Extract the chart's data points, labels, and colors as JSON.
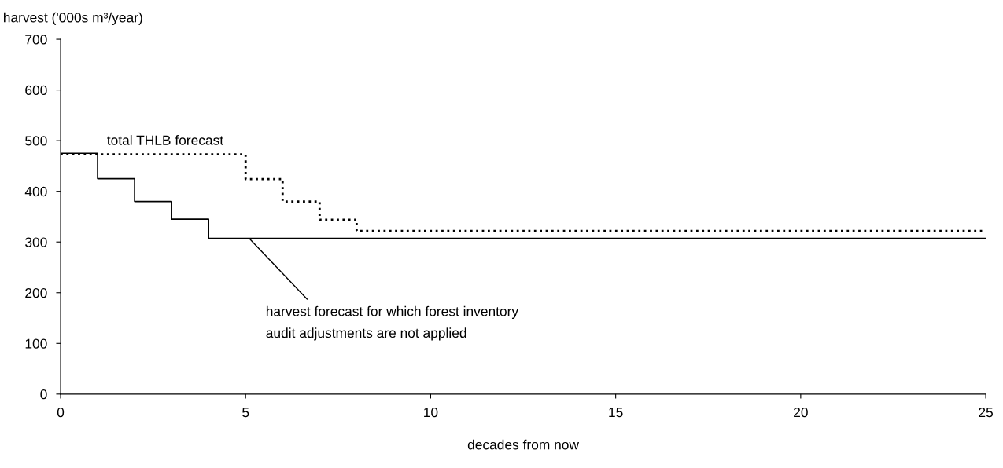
{
  "chart_data": {
    "type": "step",
    "ylabel": "harvest ('000s m³/year)",
    "xlabel": "decades from now",
    "series": [
      {
        "color": "#000000",
        "line_style": "solid",
        "x": [
          0,
          1,
          2,
          3,
          4,
          25
        ],
        "values": [
          475,
          425,
          380,
          345,
          307,
          307
        ]
      },
      {
        "color": "#000000",
        "line_style": "dotted",
        "x": [
          0,
          5,
          6,
          7,
          8,
          25
        ],
        "values": [
          473,
          424,
          380,
          344,
          322,
          322
        ]
      }
    ],
    "xlim": [
      0,
      25
    ],
    "xticks": [
      0,
      5,
      10,
      15,
      20,
      25
    ],
    "ylim": [
      0,
      700
    ],
    "yticks": [
      0,
      100,
      200,
      300,
      400,
      500,
      600,
      700
    ],
    "grid": false,
    "legend": false,
    "marker": "none",
    "annotations": [
      {
        "text": "total THLB forecast",
        "x": 1.25,
        "y": 473
      },
      {
        "text": "harvest forecast for which forest inventory\naudit adjustments are not applied",
        "x": 5.1,
        "y": 307
      }
    ]
  }
}
